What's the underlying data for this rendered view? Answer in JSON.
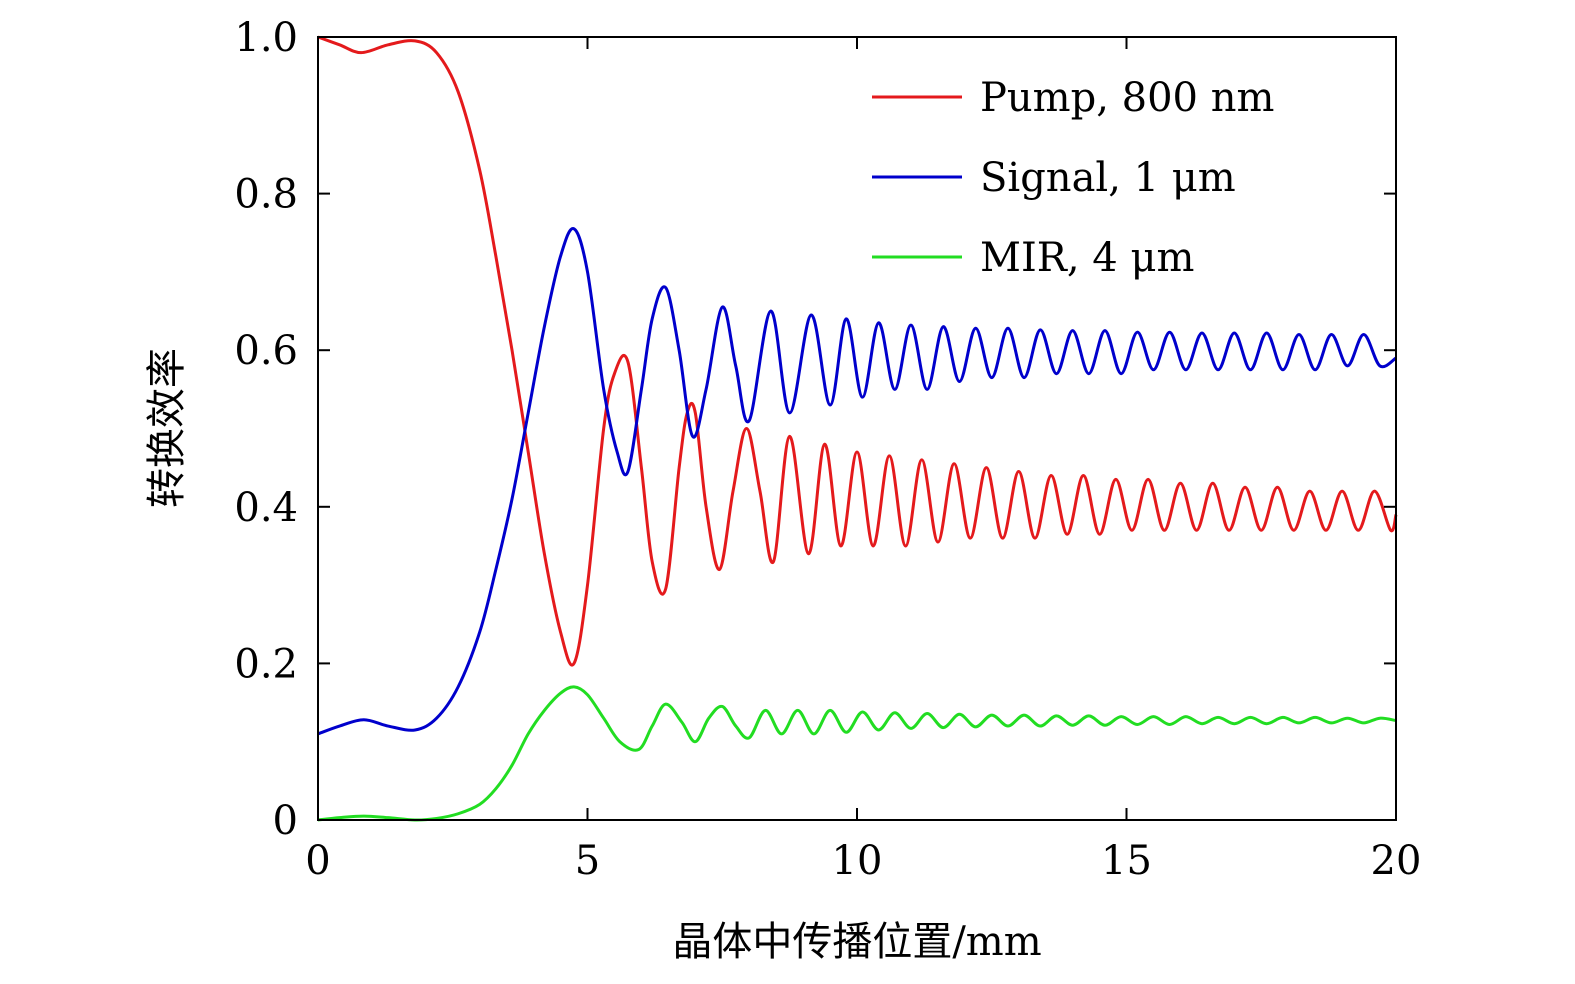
{
  "chart_data": {
    "type": "line",
    "title": "",
    "xlabel": "晶体中传播位置/mm",
    "ylabel": "转换效率",
    "xlim": [
      0,
      20
    ],
    "ylim": [
      0,
      1.0
    ],
    "xticks": [
      0,
      5,
      10,
      15,
      20
    ],
    "xtick_labels": [
      "0",
      "5",
      "10",
      "15",
      "20"
    ],
    "yticks": [
      0,
      0.2,
      0.4,
      0.6,
      0.8,
      1.0
    ],
    "ytick_labels": [
      "0",
      "0.2",
      "0.4",
      "0.6",
      "0.8",
      "1.0"
    ],
    "grid": false,
    "legend_position": "top-right",
    "series": [
      {
        "name": "Pump, 800 nm",
        "color": "#e41a1c",
        "x": [
          0,
          0.4,
          0.8,
          1.3,
          1.8,
          2.2,
          2.6,
          3.0,
          3.3,
          3.6,
          3.9,
          4.2,
          4.5,
          4.75,
          5.0,
          5.3,
          5.5,
          5.75,
          6.0,
          6.2,
          6.45,
          6.7,
          6.85,
          7.0,
          7.2,
          7.45,
          7.7,
          7.95,
          8.2,
          8.45,
          8.75,
          9.1,
          9.4,
          9.7,
          10.0,
          10.3,
          10.6,
          10.9,
          11.2,
          11.5,
          11.8,
          12.1,
          12.4,
          12.7,
          13.0,
          13.3,
          13.6,
          13.9,
          14.2,
          14.5,
          14.8,
          15.1,
          15.4,
          15.7,
          16.0,
          16.3,
          16.6,
          16.9,
          17.2,
          17.5,
          17.8,
          18.1,
          18.4,
          18.7,
          19.0,
          19.3,
          19.6,
          19.9,
          20.0
        ],
        "values": [
          1.0,
          0.99,
          0.98,
          0.99,
          0.995,
          0.98,
          0.93,
          0.83,
          0.72,
          0.6,
          0.47,
          0.34,
          0.24,
          0.2,
          0.3,
          0.5,
          0.57,
          0.585,
          0.45,
          0.33,
          0.295,
          0.45,
          0.52,
          0.52,
          0.4,
          0.32,
          0.42,
          0.5,
          0.42,
          0.33,
          0.49,
          0.34,
          0.48,
          0.35,
          0.47,
          0.35,
          0.465,
          0.35,
          0.46,
          0.355,
          0.455,
          0.36,
          0.45,
          0.36,
          0.445,
          0.36,
          0.44,
          0.365,
          0.44,
          0.365,
          0.435,
          0.37,
          0.435,
          0.37,
          0.43,
          0.37,
          0.43,
          0.37,
          0.425,
          0.37,
          0.425,
          0.37,
          0.42,
          0.37,
          0.42,
          0.37,
          0.42,
          0.37,
          0.39
        ]
      },
      {
        "name": "Signal, 1 μm",
        "color": "#0000cc",
        "x": [
          0,
          0.4,
          0.85,
          1.3,
          1.8,
          2.2,
          2.6,
          3.0,
          3.3,
          3.6,
          3.9,
          4.2,
          4.5,
          4.75,
          5.0,
          5.3,
          5.55,
          5.75,
          6.0,
          6.2,
          6.45,
          6.7,
          6.95,
          7.2,
          7.5,
          7.75,
          8.0,
          8.4,
          8.75,
          9.15,
          9.5,
          9.8,
          10.1,
          10.4,
          10.7,
          11.0,
          11.3,
          11.6,
          11.9,
          12.2,
          12.5,
          12.8,
          13.1,
          13.4,
          13.7,
          14.0,
          14.3,
          14.6,
          14.9,
          15.2,
          15.5,
          15.8,
          16.1,
          16.4,
          16.7,
          17.0,
          17.3,
          17.6,
          17.9,
          18.2,
          18.5,
          18.8,
          19.1,
          19.4,
          19.7,
          20.0
        ],
        "values": [
          0.11,
          0.12,
          0.128,
          0.12,
          0.115,
          0.13,
          0.17,
          0.24,
          0.32,
          0.41,
          0.52,
          0.63,
          0.72,
          0.755,
          0.7,
          0.55,
          0.47,
          0.445,
          0.55,
          0.64,
          0.68,
          0.6,
          0.49,
          0.55,
          0.655,
          0.58,
          0.51,
          0.65,
          0.52,
          0.645,
          0.53,
          0.64,
          0.54,
          0.635,
          0.55,
          0.632,
          0.55,
          0.63,
          0.56,
          0.628,
          0.565,
          0.628,
          0.565,
          0.626,
          0.57,
          0.625,
          0.57,
          0.625,
          0.57,
          0.623,
          0.575,
          0.623,
          0.575,
          0.622,
          0.575,
          0.622,
          0.575,
          0.622,
          0.575,
          0.62,
          0.575,
          0.62,
          0.58,
          0.62,
          0.58,
          0.59
        ]
      },
      {
        "name": "MIR, 4 μm",
        "color": "#22dd22",
        "x": [
          0,
          0.4,
          0.85,
          1.3,
          1.8,
          2.2,
          2.6,
          3.0,
          3.3,
          3.6,
          3.9,
          4.2,
          4.5,
          4.75,
          5.0,
          5.3,
          5.6,
          5.95,
          6.2,
          6.45,
          6.75,
          7.0,
          7.25,
          7.5,
          7.75,
          8.0,
          8.3,
          8.6,
          8.9,
          9.2,
          9.5,
          9.8,
          10.1,
          10.4,
          10.7,
          11.0,
          11.3,
          11.6,
          11.9,
          12.2,
          12.5,
          12.8,
          13.1,
          13.4,
          13.7,
          14.0,
          14.3,
          14.6,
          14.9,
          15.2,
          15.5,
          15.8,
          16.1,
          16.4,
          16.7,
          17.0,
          17.3,
          17.6,
          17.9,
          18.2,
          18.5,
          18.8,
          19.1,
          19.4,
          19.7,
          20.0
        ],
        "values": [
          0.0,
          0.003,
          0.005,
          0.003,
          0.0,
          0.002,
          0.008,
          0.02,
          0.04,
          0.07,
          0.11,
          0.14,
          0.162,
          0.17,
          0.16,
          0.13,
          0.1,
          0.09,
          0.12,
          0.148,
          0.125,
          0.1,
          0.13,
          0.145,
          0.12,
          0.105,
          0.14,
          0.11,
          0.14,
          0.11,
          0.14,
          0.112,
          0.138,
          0.115,
          0.137,
          0.117,
          0.136,
          0.118,
          0.135,
          0.119,
          0.134,
          0.12,
          0.134,
          0.12,
          0.133,
          0.121,
          0.133,
          0.121,
          0.132,
          0.122,
          0.132,
          0.122,
          0.132,
          0.123,
          0.131,
          0.123,
          0.131,
          0.123,
          0.131,
          0.124,
          0.131,
          0.124,
          0.13,
          0.124,
          0.13,
          0.127
        ]
      }
    ]
  }
}
